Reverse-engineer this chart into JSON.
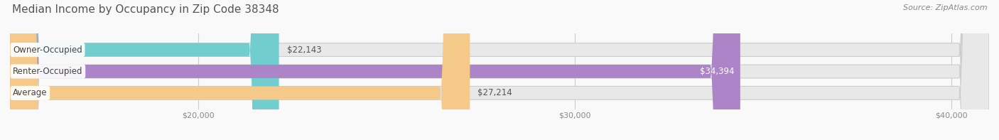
{
  "title": "Median Income by Occupancy in Zip Code 38348",
  "source": "Source: ZipAtlas.com",
  "categories": [
    "Owner-Occupied",
    "Renter-Occupied",
    "Average"
  ],
  "values": [
    22143,
    34394,
    27214
  ],
  "labels": [
    "$22,143",
    "$34,394",
    "$27,214"
  ],
  "bar_colors": [
    "#72cece",
    "#ab85c8",
    "#f5c98a"
  ],
  "bar_bg_color": "#e8e8e8",
  "xlim_min": 15000,
  "xlim_max": 41000,
  "xticks": [
    20000,
    30000,
    40000
  ],
  "xtick_labels": [
    "$20,000",
    "$30,000",
    "$40,000"
  ],
  "title_fontsize": 11,
  "source_fontsize": 8,
  "label_fontsize": 8.5,
  "bar_height": 0.62,
  "bg_color": "#f9f9f9"
}
